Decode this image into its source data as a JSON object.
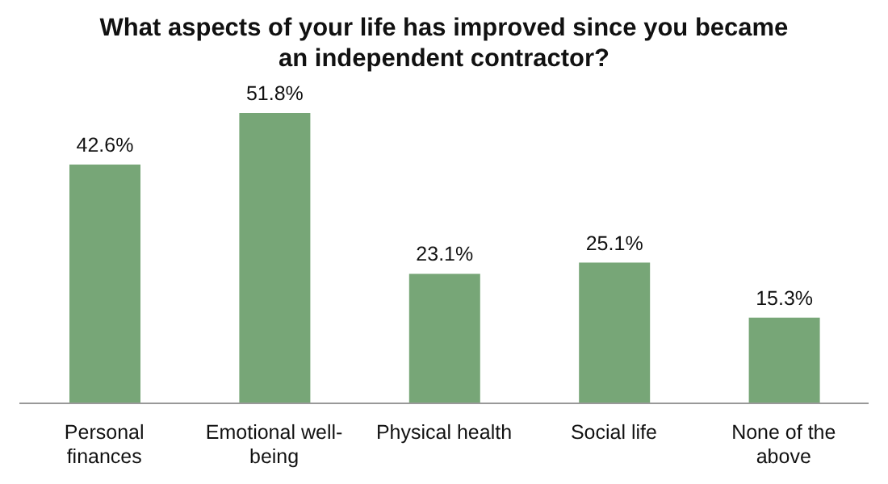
{
  "chart_data": {
    "type": "bar",
    "title": "What aspects of your life has improved since you became an independent contractor?",
    "categories": [
      "Personal finances",
      "Emotional well-being",
      "Physical health",
      "Social life",
      "None of the above"
    ],
    "values": [
      42.6,
      51.8,
      23.1,
      25.1,
      15.3
    ],
    "value_labels": [
      "42.6%",
      "51.8%",
      "23.1%",
      "25.1%",
      "15.3%"
    ],
    "color": "#77a677",
    "grid": false,
    "legend": false
  }
}
